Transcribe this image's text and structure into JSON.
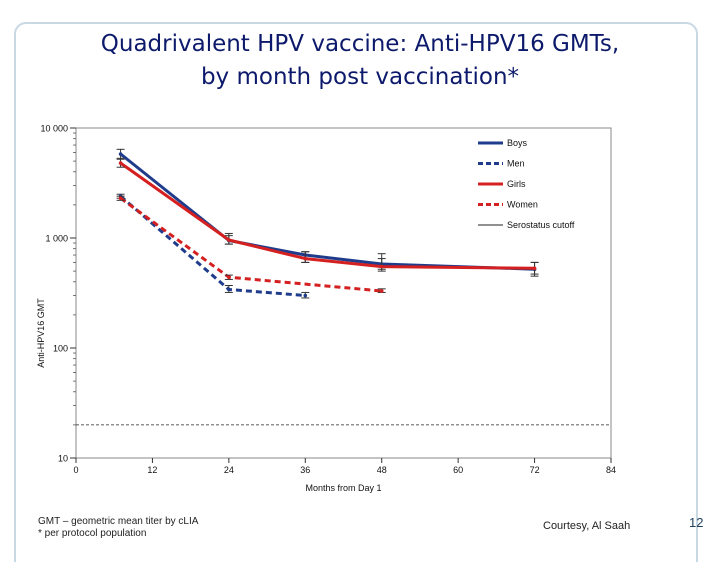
{
  "slide": {
    "title_line1": "Quadrivalent HPV vaccine:  Anti-HPV16 GMTs,",
    "title_line2": "by month post vaccination*",
    "footnote_line1": "GMT – geometric mean titer by cLIA",
    "footnote_line2": "* per protocol population",
    "courtesy": "Courtesy, Al Saah",
    "slide_number": "12"
  },
  "chart_data": {
    "type": "line",
    "xlabel": "Months from Day 1",
    "ylabel": "Anti-HPV16 GMT",
    "xlim": [
      0,
      84
    ],
    "ylim": [
      10,
      10000
    ],
    "yscale": "log",
    "x_ticks": [
      0,
      12,
      24,
      36,
      48,
      60,
      72,
      84
    ],
    "x_tick_labels": [
      "0",
      "12",
      "24",
      "36",
      "48",
      "60",
      "72",
      "84"
    ],
    "y_ticks": [
      10,
      100,
      1000,
      10000
    ],
    "y_tick_labels": [
      "10",
      "100",
      "1 000",
      "10 000"
    ],
    "legend_position": "top-right",
    "series": [
      {
        "name": "Boys",
        "color": "#1f3c8c",
        "dash": "solid",
        "x": [
          7,
          24,
          36,
          48,
          72
        ],
        "y": [
          5800,
          950,
          700,
          580,
          520
        ],
        "err_low": [
          5200,
          880,
          600,
          520,
          450
        ],
        "err_high": [
          6400,
          1100,
          750,
          720,
          600
        ]
      },
      {
        "name": "Men",
        "color": "#1f3c8c",
        "dash": "dashed",
        "x": [
          7,
          24,
          36
        ],
        "y": [
          2400,
          340,
          300
        ],
        "err_low": [
          2300,
          320,
          285
        ],
        "err_high": [
          2500,
          370,
          320
        ]
      },
      {
        "name": "Girls",
        "color": "#d42020",
        "dash": "solid",
        "x": [
          7,
          24,
          36,
          48,
          72
        ],
        "y": [
          4800,
          960,
          650,
          550,
          530
        ],
        "err_low": [
          4400,
          880,
          600,
          500,
          470
        ],
        "err_high": [
          5300,
          1050,
          750,
          650,
          600
        ]
      },
      {
        "name": "Women",
        "color": "#d42020",
        "dash": "dashed",
        "x": [
          7,
          24,
          48
        ],
        "y": [
          2300,
          440,
          330
        ],
        "err_low": [
          2200,
          420,
          320
        ],
        "err_high": [
          2400,
          460,
          345
        ]
      }
    ],
    "cutoff": {
      "name": "Serostatus cutoff",
      "y": 20,
      "color": "#222222"
    }
  }
}
